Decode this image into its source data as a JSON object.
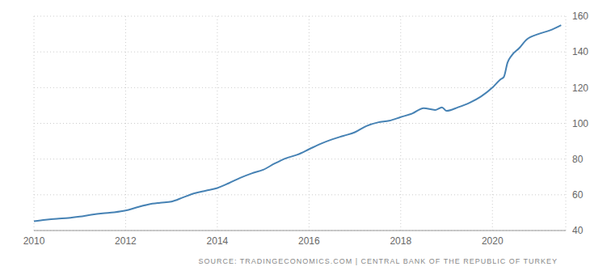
{
  "chart_data": {
    "type": "line",
    "annotation": "SOURCE: TRADINGECONOMICS.COM | CENTRAL BANK OF THE REPUBLIC OF TURKEY",
    "x": [
      2010,
      2010.25,
      2010.5,
      2010.75,
      2011,
      2011.25,
      2011.5,
      2011.75,
      2012,
      2012.25,
      2012.5,
      2012.75,
      2013,
      2013.25,
      2013.5,
      2013.75,
      2014,
      2014.25,
      2014.5,
      2014.75,
      2015,
      2015.25,
      2015.5,
      2015.75,
      2016,
      2016.25,
      2016.5,
      2016.75,
      2017,
      2017.25,
      2017.5,
      2017.75,
      2018,
      2018.25,
      2018.5,
      2018.75,
      2018.9,
      2019,
      2019.25,
      2019.5,
      2019.75,
      2020,
      2020.17,
      2020.25,
      2020.33,
      2020.42,
      2020.58,
      2020.75,
      2021,
      2021.25,
      2021.5
    ],
    "values": [
      45.2,
      46,
      46.6,
      47,
      47.8,
      48.8,
      49.6,
      50.2,
      51.2,
      53,
      54.6,
      55.5,
      56.2,
      58.5,
      60.8,
      62.3,
      63.8,
      66.5,
      69.5,
      72,
      74,
      77.5,
      80.5,
      82.5,
      85.5,
      88.5,
      91,
      93,
      95,
      98.5,
      100.5,
      101.5,
      103.5,
      105.5,
      108.5,
      107.5,
      109,
      107,
      109,
      111.5,
      115,
      120,
      124.5,
      126,
      134,
      138,
      142,
      147,
      150,
      152,
      155
    ],
    "color": "#4682b4",
    "xlim": [
      2010,
      2021.6
    ],
    "xticks": [
      2010,
      2012,
      2014,
      2016,
      2018,
      2020
    ],
    "ylim": [
      40,
      160
    ],
    "yticks": [
      40,
      60,
      80,
      100,
      120,
      140,
      160
    ],
    "grid": true
  }
}
